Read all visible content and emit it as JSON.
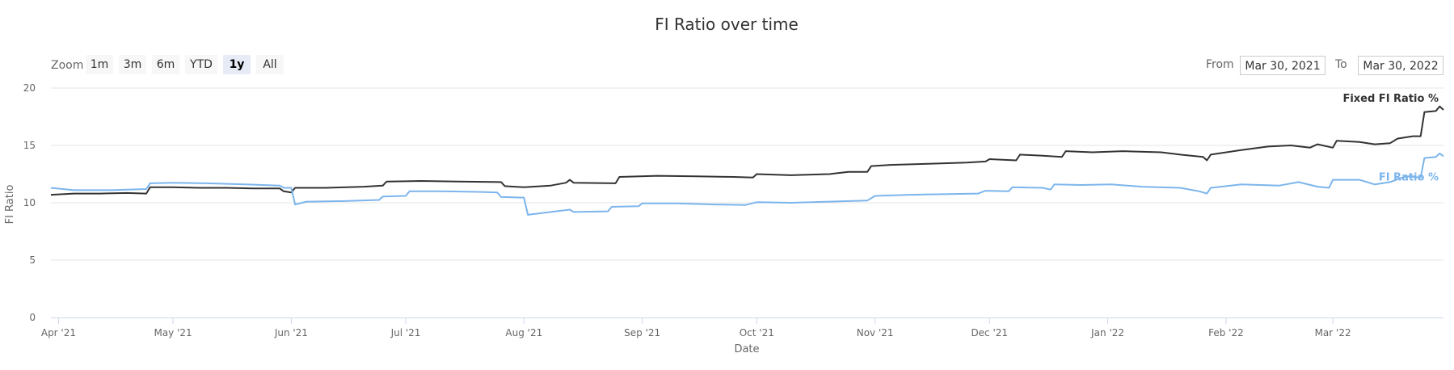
{
  "chart_data": {
    "type": "line",
    "title": "FI Ratio over time",
    "xlabel": "Date",
    "ylabel": "FI Ratio",
    "ylim": [
      0,
      20
    ],
    "yticks": [
      "0",
      "5",
      "10",
      "15",
      "20"
    ],
    "xlim": [
      "2021-03-30",
      "2022-03-30"
    ],
    "xticks": [
      {
        "date": "2021-04-01",
        "label": "Apr '21"
      },
      {
        "date": "2021-05-01",
        "label": "May '21"
      },
      {
        "date": "2021-06-01",
        "label": "Jun '21"
      },
      {
        "date": "2021-07-01",
        "label": "Jul '21"
      },
      {
        "date": "2021-08-01",
        "label": "Aug '21"
      },
      {
        "date": "2021-09-01",
        "label": "Sep '21"
      },
      {
        "date": "2021-10-01",
        "label": "Oct '21"
      },
      {
        "date": "2021-11-01",
        "label": "Nov '21"
      },
      {
        "date": "2021-12-01",
        "label": "Dec '21"
      },
      {
        "date": "2022-01-01",
        "label": "Jan '22"
      },
      {
        "date": "2022-02-01",
        "label": "Feb '22"
      },
      {
        "date": "2022-03-01",
        "label": "Mar '22"
      }
    ],
    "grid": true,
    "legend": "series labels at right end of lines",
    "series": [
      {
        "name": "Fixed FI Ratio %",
        "color": "#333333",
        "points": [
          [
            "2021-03-30",
            10.7
          ],
          [
            "2021-04-05",
            10.8
          ],
          [
            "2021-04-12",
            10.8
          ],
          [
            "2021-04-19",
            10.85
          ],
          [
            "2021-04-24",
            10.8
          ],
          [
            "2021-04-25",
            11.35
          ],
          [
            "2021-05-01",
            11.35
          ],
          [
            "2021-05-08",
            11.3
          ],
          [
            "2021-05-15",
            11.3
          ],
          [
            "2021-05-22",
            11.25
          ],
          [
            "2021-05-29",
            11.25
          ],
          [
            "2021-05-30",
            11.0
          ],
          [
            "2021-06-01",
            10.9
          ],
          [
            "2021-06-02",
            11.3
          ],
          [
            "2021-06-10",
            11.3
          ],
          [
            "2021-06-20",
            11.4
          ],
          [
            "2021-06-25",
            11.5
          ],
          [
            "2021-06-26",
            11.85
          ],
          [
            "2021-07-05",
            11.9
          ],
          [
            "2021-07-15",
            11.85
          ],
          [
            "2021-07-26",
            11.8
          ],
          [
            "2021-07-27",
            11.45
          ],
          [
            "2021-08-01",
            11.35
          ],
          [
            "2021-08-08",
            11.5
          ],
          [
            "2021-08-12",
            11.75
          ],
          [
            "2021-08-13",
            12.0
          ],
          [
            "2021-08-14",
            11.75
          ],
          [
            "2021-08-25",
            11.7
          ],
          [
            "2021-08-26",
            12.25
          ],
          [
            "2021-09-05",
            12.35
          ],
          [
            "2021-09-15",
            12.3
          ],
          [
            "2021-09-25",
            12.25
          ],
          [
            "2021-09-30",
            12.2
          ],
          [
            "2021-10-01",
            12.5
          ],
          [
            "2021-10-10",
            12.4
          ],
          [
            "2021-10-20",
            12.5
          ],
          [
            "2021-10-25",
            12.7
          ],
          [
            "2021-10-30",
            12.7
          ],
          [
            "2021-10-31",
            13.2
          ],
          [
            "2021-11-05",
            13.3
          ],
          [
            "2021-11-15",
            13.4
          ],
          [
            "2021-11-25",
            13.5
          ],
          [
            "2021-11-30",
            13.6
          ],
          [
            "2021-12-01",
            13.8
          ],
          [
            "2021-12-08",
            13.7
          ],
          [
            "2021-12-09",
            14.2
          ],
          [
            "2021-12-15",
            14.1
          ],
          [
            "2021-12-20",
            14.0
          ],
          [
            "2021-12-21",
            14.5
          ],
          [
            "2021-12-28",
            14.4
          ],
          [
            "2022-01-05",
            14.5
          ],
          [
            "2022-01-15",
            14.4
          ],
          [
            "2022-01-20",
            14.2
          ],
          [
            "2022-01-26",
            14.0
          ],
          [
            "2022-01-27",
            13.7
          ],
          [
            "2022-01-28",
            14.2
          ],
          [
            "2022-02-05",
            14.6
          ],
          [
            "2022-02-12",
            14.9
          ],
          [
            "2022-02-18",
            15.0
          ],
          [
            "2022-02-23",
            14.8
          ],
          [
            "2022-02-25",
            15.1
          ],
          [
            "2022-03-01",
            14.8
          ],
          [
            "2022-03-02",
            15.4
          ],
          [
            "2022-03-08",
            15.3
          ],
          [
            "2022-03-12",
            15.1
          ],
          [
            "2022-03-16",
            15.2
          ],
          [
            "2022-03-18",
            15.6
          ],
          [
            "2022-03-22",
            15.8
          ],
          [
            "2022-03-24",
            15.8
          ],
          [
            "2022-03-25",
            17.9
          ],
          [
            "2022-03-28",
            18.0
          ],
          [
            "2022-03-29",
            18.4
          ],
          [
            "2022-03-30",
            18.1
          ]
        ]
      },
      {
        "name": "FI Ratio %",
        "color": "#7cb5ec",
        "points": [
          [
            "2021-03-30",
            11.3
          ],
          [
            "2021-04-05",
            11.1
          ],
          [
            "2021-04-15",
            11.1
          ],
          [
            "2021-04-24",
            11.2
          ],
          [
            "2021-04-25",
            11.7
          ],
          [
            "2021-05-01",
            11.75
          ],
          [
            "2021-05-10",
            11.7
          ],
          [
            "2021-05-20",
            11.6
          ],
          [
            "2021-05-29",
            11.5
          ],
          [
            "2021-05-30",
            11.3
          ],
          [
            "2021-06-01",
            11.3
          ],
          [
            "2021-06-02",
            9.85
          ],
          [
            "2021-06-05",
            10.1
          ],
          [
            "2021-06-15",
            10.15
          ],
          [
            "2021-06-24",
            10.25
          ],
          [
            "2021-06-25",
            10.55
          ],
          [
            "2021-07-01",
            10.6
          ],
          [
            "2021-07-02",
            11.0
          ],
          [
            "2021-07-10",
            11.0
          ],
          [
            "2021-07-20",
            10.95
          ],
          [
            "2021-07-25",
            10.9
          ],
          [
            "2021-07-26",
            10.5
          ],
          [
            "2021-08-01",
            10.45
          ],
          [
            "2021-08-02",
            8.95
          ],
          [
            "2021-08-08",
            9.2
          ],
          [
            "2021-08-13",
            9.4
          ],
          [
            "2021-08-14",
            9.2
          ],
          [
            "2021-08-23",
            9.25
          ],
          [
            "2021-08-24",
            9.65
          ],
          [
            "2021-08-31",
            9.7
          ],
          [
            "2021-09-01",
            9.95
          ],
          [
            "2021-09-10",
            9.95
          ],
          [
            "2021-09-20",
            9.85
          ],
          [
            "2021-09-28",
            9.8
          ],
          [
            "2021-10-01",
            10.05
          ],
          [
            "2021-10-10",
            10.0
          ],
          [
            "2021-10-20",
            10.1
          ],
          [
            "2021-10-30",
            10.2
          ],
          [
            "2021-11-01",
            10.6
          ],
          [
            "2021-11-10",
            10.7
          ],
          [
            "2021-11-20",
            10.75
          ],
          [
            "2021-11-28",
            10.8
          ],
          [
            "2021-11-30",
            11.05
          ],
          [
            "2021-12-06",
            11.0
          ],
          [
            "2021-12-07",
            11.35
          ],
          [
            "2021-12-15",
            11.3
          ],
          [
            "2021-12-17",
            11.15
          ],
          [
            "2021-12-18",
            11.6
          ],
          [
            "2021-12-25",
            11.55
          ],
          [
            "2022-01-02",
            11.6
          ],
          [
            "2022-01-10",
            11.4
          ],
          [
            "2022-01-20",
            11.3
          ],
          [
            "2022-01-25",
            11.0
          ],
          [
            "2022-01-27",
            10.8
          ],
          [
            "2022-01-28",
            11.3
          ],
          [
            "2022-02-05",
            11.6
          ],
          [
            "2022-02-15",
            11.5
          ],
          [
            "2022-02-20",
            11.8
          ],
          [
            "2022-02-25",
            11.4
          ],
          [
            "2022-02-28",
            11.3
          ],
          [
            "2022-03-01",
            12.0
          ],
          [
            "2022-03-08",
            12.0
          ],
          [
            "2022-03-12",
            11.6
          ],
          [
            "2022-03-16",
            11.8
          ],
          [
            "2022-03-20",
            12.3
          ],
          [
            "2022-03-24",
            12.2
          ],
          [
            "2022-03-25",
            13.9
          ],
          [
            "2022-03-28",
            14.0
          ],
          [
            "2022-03-29",
            14.3
          ],
          [
            "2022-03-30",
            14.05
          ]
        ]
      }
    ]
  },
  "range_selector": {
    "zoom_label": "Zoom",
    "buttons": [
      {
        "label": "1m",
        "selected": false
      },
      {
        "label": "3m",
        "selected": false
      },
      {
        "label": "6m",
        "selected": false
      },
      {
        "label": "YTD",
        "selected": false
      },
      {
        "label": "1y",
        "selected": true
      },
      {
        "label": "All",
        "selected": false
      }
    ],
    "from_label": "From",
    "from_value": "Mar 30, 2021",
    "to_label": "To",
    "to_value": "Mar 30, 2022"
  }
}
